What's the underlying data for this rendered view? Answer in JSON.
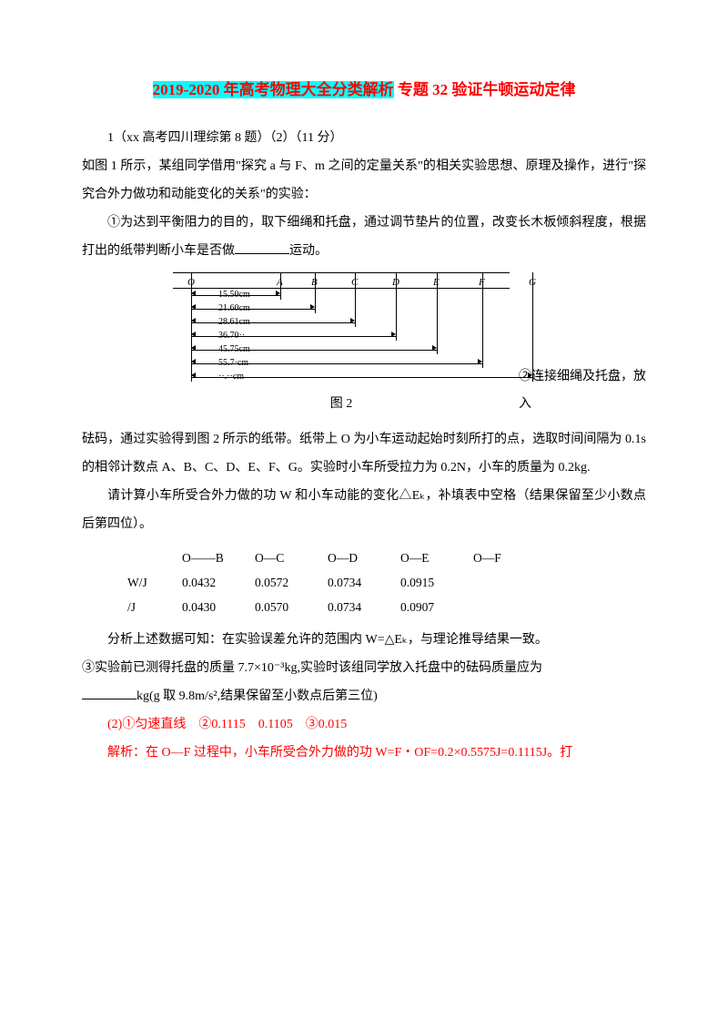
{
  "title_hl": "2019-2020 年高考物理大全分类解析",
  "title_rest": " 专题 32 验证牛顿运动定律",
  "q_num": "1（xx 高考四川理综第 8 题）（2）（11 分）",
  "intro1": "如图 1 所示，某组同学借用\"探究 a 与 F、m 之间的定量关系\"的相关实验思想、原理及操作，进行\"探究合外力做功和动能变化的关系\"的实验：",
  "step1": "①为达到平衡阻力的目的，取下细绳和托盘，通过调节垫片的位置，改变长木板倾斜程度，根据打出的纸带判断小车是否做",
  "step1_end": "运动。",
  "diagram": {
    "points": [
      "O",
      "A",
      "B",
      "C",
      "D",
      "E",
      "F",
      "G"
    ],
    "positions": [
      20,
      118,
      156,
      200,
      245,
      290,
      340,
      395
    ],
    "measurements": [
      {
        "label": "15.50cm",
        "from": 20,
        "to": 118
      },
      {
        "label": "21.60cm",
        "from": 20,
        "to": 156
      },
      {
        "label": "28.61cm",
        "from": 20,
        "to": 200
      },
      {
        "label": "36.70··",
        "from": 20,
        "to": 245
      },
      {
        "label": "45.75cm",
        "from": 20,
        "to": 290
      },
      {
        "label": "55.7·cm",
        "from": 20,
        "to": 340
      },
      {
        "label": "··.··cm",
        "from": 20,
        "to": 395
      }
    ],
    "caption": "图 2"
  },
  "step2_start": "②连接细绳及托盘，放入",
  "step2_cont": "砝码，通过实验得到图 2 所示的纸带。纸带上 O 为小车运动起始时刻所打的点，选取时间间隔为 0.1s 的相邻计数点 A、B、C、D、E、F、G。实验时小车所受拉力为 0.2N，小车的质量为 0.2kg.",
  "step2_2": "请计算小车所受合外力做的功 W 和小车动能的变化△Eₖ，补填表中空格（结果保留至少小数点后第四位）。",
  "table": {
    "headers": [
      "",
      "O——B",
      "O—C",
      "O—D",
      "O—E",
      "O—F"
    ],
    "row1_label": "W/J",
    "row1": [
      "0.0432",
      "0.0572",
      "0.0734",
      "0.0915",
      ""
    ],
    "row2_label": "/J",
    "row2": [
      "0.0430",
      "0.0570",
      "0.0734",
      "0.0907",
      ""
    ]
  },
  "analysis": "分析上述数据可知：在实验误差允许的范围内 W=△Eₖ，与理论推导结果一致。",
  "step3": "③实验前已测得托盘的质量 7.7×10⁻³kg,实验时该组同学放入托盘中的砝码质量应为",
  "step3_end": "kg(g 取 9.8m/s²,结果保留至小数点后第三位)",
  "ans1": "(2)①匀速直线　②0.1115　0.1105　③0.015",
  "ans2": "解析：在 O—F 过程中，小车所受合外力做的功 W=F・OF=0.2×0.5575J=0.1115J。打",
  "colors": {
    "highlight": "#00ffff",
    "red": "#ff0000",
    "text": "#000000"
  }
}
